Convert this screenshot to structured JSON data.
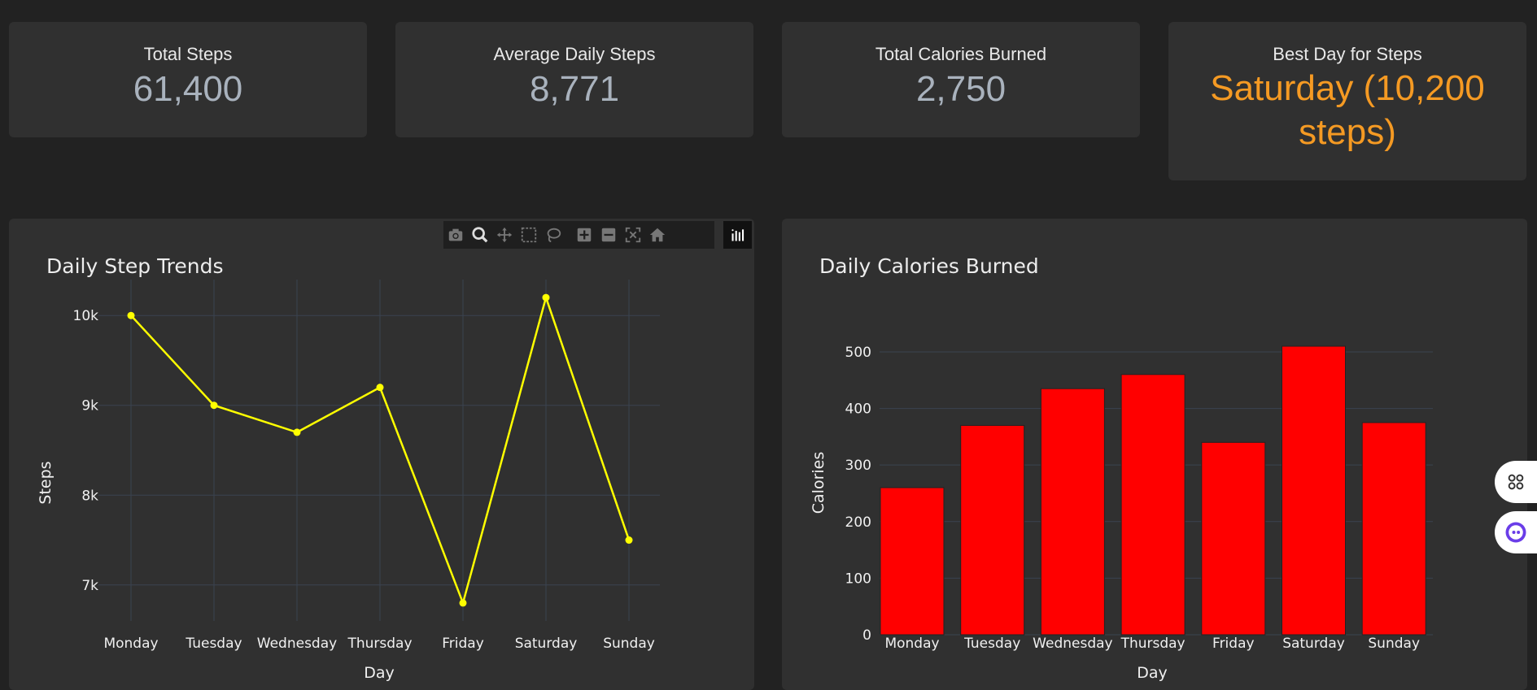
{
  "cards": [
    {
      "title": "Total Steps",
      "value": "61,400"
    },
    {
      "title": "Average Daily Steps",
      "value": "8,771"
    },
    {
      "title": "Total Calories Burned",
      "value": "2,750"
    },
    {
      "title": "Best Day for Steps",
      "value": "Saturday (10,200 steps)"
    }
  ],
  "colors": {
    "accent": "#f59a23",
    "line": "#ffff00",
    "bar": "#ff0000"
  },
  "modebar": [
    "camera-icon",
    "zoom-icon",
    "pan-icon",
    "box-select-icon",
    "lasso-icon",
    "zoom-in-icon",
    "zoom-out-icon",
    "autoscale-icon",
    "reset-axes-icon"
  ],
  "chart_data": [
    {
      "type": "line",
      "title": "Daily Step Trends",
      "xlabel": "Day",
      "ylabel": "Steps",
      "categories": [
        "Monday",
        "Tuesday",
        "Wednesday",
        "Thursday",
        "Friday",
        "Saturday",
        "Sunday"
      ],
      "values": [
        10000,
        9000,
        8700,
        9200,
        6800,
        10200,
        7500
      ],
      "yticks": [
        7000,
        8000,
        9000,
        10000
      ],
      "ytick_labels": [
        "7k",
        "8k",
        "9k",
        "10k"
      ],
      "ylim": [
        6600,
        10400
      ]
    },
    {
      "type": "bar",
      "title": "Daily Calories Burned",
      "xlabel": "Day",
      "ylabel": "Calories",
      "categories": [
        "Monday",
        "Tuesday",
        "Wednesday",
        "Thursday",
        "Friday",
        "Saturday",
        "Sunday"
      ],
      "values": [
        260,
        370,
        435,
        460,
        340,
        510,
        375
      ],
      "yticks": [
        0,
        100,
        200,
        300,
        400,
        500
      ],
      "ytick_labels": [
        "0",
        "100",
        "200",
        "300",
        "400",
        "500"
      ],
      "ylim": [
        0,
        510
      ]
    }
  ]
}
